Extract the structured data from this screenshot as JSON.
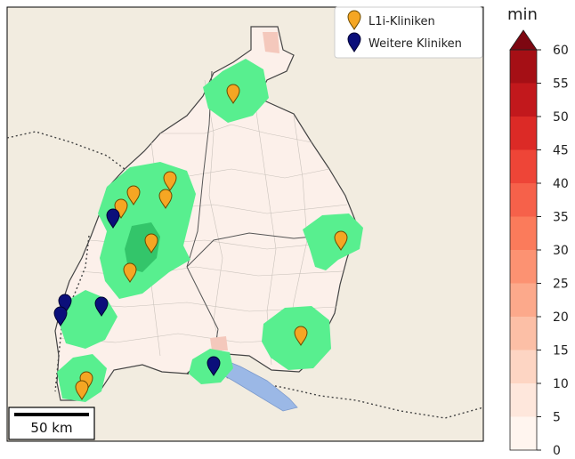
{
  "legend": {
    "items": [
      {
        "label": "L1i-Kliniken",
        "color": "#f5a623",
        "icon": "map-pin-icon"
      },
      {
        "label": "Weitere Kliniken",
        "color": "#0b0f7a",
        "icon": "map-pin-icon"
      }
    ]
  },
  "scalebar": {
    "label": "50 km"
  },
  "colorbar": {
    "unit": "min",
    "ticks": [
      "0",
      "5",
      "10",
      "15",
      "20",
      "25",
      "30",
      "35",
      "40",
      "45",
      "50",
      "55",
      "60"
    ],
    "colors": [
      "#fff5ef",
      "#fee7dc",
      "#fdd5c3",
      "#fcbfa6",
      "#fca98b",
      "#fc9272",
      "#fb7b5b",
      "#f6614a",
      "#ee4537",
      "#dc2a26",
      "#c2181c",
      "#a50f15",
      "#7d0711"
    ]
  },
  "colors": {
    "green_zone": "#58ef8f",
    "dark_green_zone": "#33c56a",
    "land": "#f2ece0",
    "state": "#fcf0ea",
    "lake": "#9bb8e6",
    "pink": "#f4c8bc"
  },
  "markers": {
    "l1i_clinics": 11,
    "other_clinics": 5
  }
}
